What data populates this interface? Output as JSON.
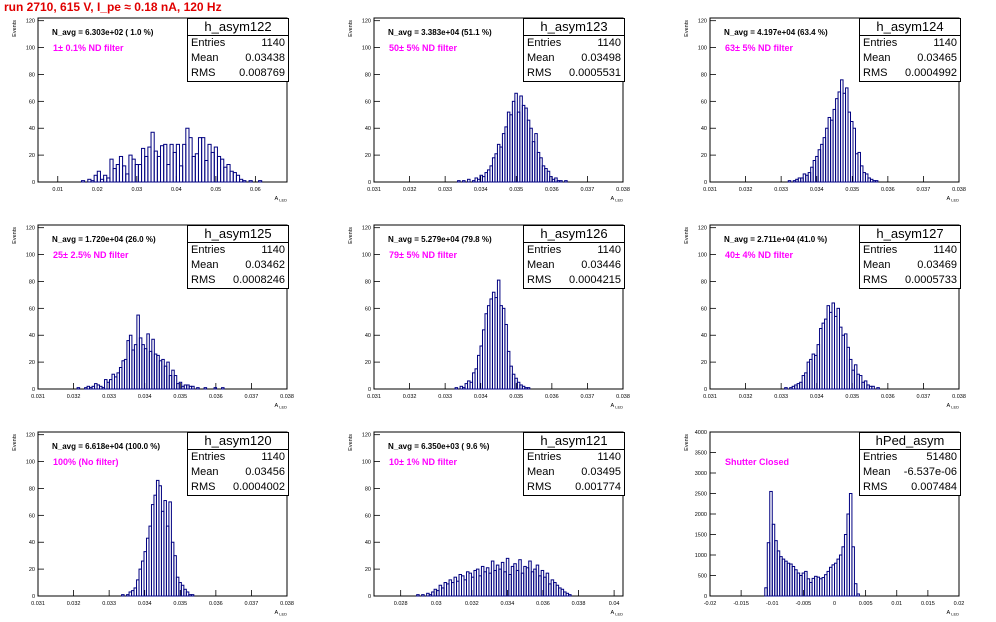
{
  "run_title": "run 2710,   615 V, I_pe ≈ 0.18 nA, 120 Hz",
  "colors": {
    "title": "#e00000",
    "annotation": "#ff00ff",
    "histogram": "#000080"
  },
  "chart_data": [
    {
      "type": "bar",
      "stat_name": "h_asym122",
      "entries": "1140",
      "mean": "0.03438",
      "rms": "0.008769",
      "n_avg": "N_avg = 6.303e+02 ( 1.0 %)",
      "filter": "1± 0.1% ND filter",
      "ylabel": "Events",
      "xlabel": "A",
      "xlabel_sub": "LED",
      "xlim": [
        0.005,
        0.068
      ],
      "ylim": [
        0,
        122
      ],
      "xticks": [
        0.01,
        0.02,
        0.03,
        0.04,
        0.05,
        0.06
      ],
      "xtick_labels": [
        "0.01",
        "0.02",
        "0.03",
        "0.04",
        "0.05",
        "0.06"
      ],
      "yticks": [
        0,
        20,
        40,
        60,
        80,
        100,
        120
      ],
      "ytick_labels": [
        "0",
        "20",
        "40",
        "60",
        "80",
        "100",
        "120"
      ],
      "bin_start": 0.016,
      "bin_width": 0.0008,
      "values": [
        1,
        0,
        2,
        1,
        5,
        8,
        2,
        5,
        3,
        17,
        10,
        13,
        19,
        12,
        6,
        20,
        17,
        13,
        13,
        25,
        19,
        26,
        37,
        23,
        19,
        27,
        28,
        13,
        28,
        22,
        28,
        12,
        28,
        40,
        33,
        19,
        21,
        33,
        33,
        16,
        28,
        22,
        26,
        19,
        17,
        11,
        13,
        8,
        7,
        5,
        2,
        1,
        0,
        1,
        0,
        0,
        1
      ]
    },
    {
      "type": "bar",
      "stat_name": "h_asym123",
      "entries": "1140",
      "mean": "0.03498",
      "rms": "0.0005531",
      "n_avg": "N_avg = 3.383e+04 (51.1 %)",
      "filter": "50± 5% ND filter",
      "ylabel": "Events",
      "xlabel": "A",
      "xlabel_sub": "LED",
      "xlim": [
        0.031,
        0.038
      ],
      "ylim": [
        0,
        122
      ],
      "xticks": [
        0.031,
        0.032,
        0.033,
        0.034,
        0.035,
        0.036,
        0.037,
        0.038
      ],
      "xtick_labels": [
        "0.031",
        "0.032",
        "0.033",
        "0.034",
        "0.035",
        "0.036",
        "0.037",
        "0.038"
      ],
      "yticks": [
        0,
        20,
        40,
        60,
        80,
        100,
        120
      ],
      "ytick_labels": [
        "0",
        "20",
        "40",
        "60",
        "80",
        "100",
        "120"
      ],
      "bin_start": 0.03335,
      "bin_width": 7e-05,
      "values": [
        1,
        0,
        1,
        0,
        2,
        0,
        1,
        3,
        2,
        5,
        4,
        7,
        9,
        12,
        18,
        21,
        28,
        26,
        36,
        41,
        52,
        50,
        60,
        66,
        52,
        64,
        57,
        55,
        46,
        40,
        30,
        36,
        22,
        18,
        12,
        10,
        8,
        4,
        2,
        3,
        1,
        1,
        0,
        1
      ]
    },
    {
      "type": "bar",
      "stat_name": "h_asym124",
      "entries": "1140",
      "mean": "0.03465",
      "rms": "0.0004992",
      "n_avg": "N_avg = 4.197e+04 (63.4 %)",
      "filter": "63± 5% ND filter",
      "ylabel": "Events",
      "xlabel": "A",
      "xlabel_sub": "LED",
      "xlim": [
        0.031,
        0.038
      ],
      "ylim": [
        0,
        122
      ],
      "xticks": [
        0.031,
        0.032,
        0.033,
        0.034,
        0.035,
        0.036,
        0.037,
        0.038
      ],
      "xtick_labels": [
        "0.031",
        "0.032",
        "0.033",
        "0.034",
        "0.035",
        "0.036",
        "0.037",
        "0.038"
      ],
      "yticks": [
        0,
        20,
        40,
        60,
        80,
        100,
        120
      ],
      "ytick_labels": [
        "0",
        "20",
        "40",
        "60",
        "80",
        "100",
        "120"
      ],
      "bin_start": 0.0332,
      "bin_width": 7e-05,
      "values": [
        1,
        0,
        1,
        2,
        3,
        3,
        6,
        5,
        7,
        11,
        16,
        19,
        24,
        28,
        33,
        40,
        48,
        46,
        54,
        62,
        67,
        76,
        66,
        70,
        52,
        45,
        40,
        21,
        22,
        12,
        7,
        6,
        3,
        2,
        1,
        1
      ]
    },
    {
      "type": "bar",
      "stat_name": "h_asym125",
      "entries": "1140",
      "mean": "0.03462",
      "rms": "0.0008246",
      "n_avg": "N_avg = 1.720e+04 (26.0 %)",
      "filter": "25± 2.5% ND filter",
      "ylabel": "Events",
      "xlabel": "A",
      "xlabel_sub": "LED",
      "xlim": [
        0.031,
        0.038
      ],
      "ylim": [
        0,
        122
      ],
      "xticks": [
        0.031,
        0.032,
        0.033,
        0.034,
        0.035,
        0.036,
        0.037,
        0.038
      ],
      "xtick_labels": [
        "0.031",
        "0.032",
        "0.033",
        "0.034",
        "0.035",
        "0.036",
        "0.037",
        "0.038"
      ],
      "yticks": [
        0,
        20,
        40,
        60,
        80,
        100,
        120
      ],
      "ytick_labels": [
        "0",
        "20",
        "40",
        "60",
        "80",
        "100",
        "120"
      ],
      "bin_start": 0.0321,
      "bin_width": 7e-05,
      "values": [
        1,
        0,
        0,
        1,
        2,
        1,
        2,
        4,
        3,
        2,
        1,
        7,
        5,
        7,
        11,
        9,
        12,
        16,
        21,
        22,
        36,
        40,
        29,
        33,
        55,
        38,
        33,
        30,
        41,
        28,
        37,
        26,
        25,
        21,
        22,
        17,
        20,
        10,
        14,
        10,
        4,
        5,
        2,
        3,
        3,
        2,
        2,
        0,
        1,
        0,
        0,
        1,
        0,
        0,
        0,
        1,
        0,
        0,
        1
      ]
    },
    {
      "type": "bar",
      "stat_name": "h_asym126",
      "entries": "1140",
      "mean": "0.03446",
      "rms": "0.0004215",
      "n_avg": "N_avg = 5.279e+04 (79.8 %)",
      "filter": "79± 5% ND filter",
      "ylabel": "Events",
      "xlabel": "A",
      "xlabel_sub": "LED",
      "xlim": [
        0.031,
        0.038
      ],
      "ylim": [
        0,
        122
      ],
      "xticks": [
        0.031,
        0.032,
        0.033,
        0.034,
        0.035,
        0.036,
        0.037,
        0.038
      ],
      "xtick_labels": [
        "0.031",
        "0.032",
        "0.033",
        "0.034",
        "0.035",
        "0.036",
        "0.037",
        "0.038"
      ],
      "yticks": [
        0,
        20,
        40,
        60,
        80,
        100,
        120
      ],
      "ytick_labels": [
        "0",
        "20",
        "40",
        "60",
        "80",
        "100",
        "120"
      ],
      "bin_start": 0.03328,
      "bin_width": 7e-05,
      "values": [
        1,
        0,
        2,
        1,
        4,
        6,
        5,
        12,
        15,
        25,
        32,
        44,
        56,
        62,
        67,
        72,
        68,
        81,
        62,
        60,
        48,
        28,
        17,
        11,
        8,
        5,
        3,
        2,
        1,
        1
      ]
    },
    {
      "type": "bar",
      "stat_name": "h_asym127",
      "entries": "1140",
      "mean": "0.03469",
      "rms": "0.0005733",
      "n_avg": "N_avg = 2.711e+04 (41.0 %)",
      "filter": "40± 4% ND filter",
      "ylabel": "Events",
      "xlabel": "A",
      "xlabel_sub": "LED",
      "xlim": [
        0.031,
        0.038
      ],
      "ylim": [
        0,
        122
      ],
      "xticks": [
        0.031,
        0.032,
        0.033,
        0.034,
        0.035,
        0.036,
        0.037,
        0.038
      ],
      "xtick_labels": [
        "0.031",
        "0.032",
        "0.033",
        "0.034",
        "0.035",
        "0.036",
        "0.037",
        "0.038"
      ],
      "yticks": [
        0,
        20,
        40,
        60,
        80,
        100,
        120
      ],
      "ytick_labels": [
        "0",
        "20",
        "40",
        "60",
        "80",
        "100",
        "120"
      ],
      "bin_start": 0.0331,
      "bin_width": 7e-05,
      "values": [
        1,
        0,
        1,
        2,
        3,
        4,
        5,
        10,
        12,
        20,
        22,
        26,
        25,
        33,
        45,
        49,
        52,
        62,
        57,
        64,
        54,
        60,
        46,
        40,
        41,
        31,
        22,
        14,
        18,
        11,
        10,
        5,
        6,
        3,
        2,
        2,
        0,
        1
      ]
    },
    {
      "type": "bar",
      "stat_name": "h_asym120",
      "entries": "1140",
      "mean": "0.03456",
      "rms": "0.0004002",
      "n_avg": "N_avg = 6.618e+04 (100.0 %)",
      "filter": "100% (No filter)",
      "ylabel": "Events",
      "xlabel": "A",
      "xlabel_sub": "LED",
      "xlim": [
        0.031,
        0.038
      ],
      "ylim": [
        0,
        122
      ],
      "xticks": [
        0.031,
        0.032,
        0.033,
        0.034,
        0.035,
        0.036,
        0.037,
        0.038
      ],
      "xtick_labels": [
        "0.031",
        "0.032",
        "0.033",
        "0.034",
        "0.035",
        "0.036",
        "0.037",
        "0.038"
      ],
      "yticks": [
        0,
        20,
        40,
        60,
        80,
        100,
        120
      ],
      "ytick_labels": [
        "0",
        "20",
        "40",
        "60",
        "80",
        "100",
        "120"
      ],
      "bin_start": 0.03335,
      "bin_width": 7e-05,
      "values": [
        1,
        0,
        1,
        3,
        4,
        6,
        12,
        20,
        26,
        33,
        43,
        52,
        68,
        75,
        86,
        82,
        63,
        71,
        52,
        70,
        40,
        30,
        14,
        10,
        8,
        5,
        3,
        1,
        1
      ]
    },
    {
      "type": "bar",
      "stat_name": "h_asym121",
      "entries": "1140",
      "mean": "0.03495",
      "rms": "0.001774",
      "n_avg": "N_avg = 6.350e+03 ( 9.6 %)",
      "filter": "10± 1% ND filter",
      "ylabel": "Events",
      "xlabel": "A",
      "xlabel_sub": "LED",
      "xlim": [
        0.0265,
        0.0405
      ],
      "ylim": [
        0,
        122
      ],
      "xticks": [
        0.028,
        0.03,
        0.032,
        0.034,
        0.036,
        0.038,
        0.04
      ],
      "xtick_labels": [
        "0.028",
        "0.03",
        "0.032",
        "0.034",
        "0.036",
        "0.038",
        "0.04"
      ],
      "yticks": [
        0,
        20,
        40,
        60,
        80,
        100,
        120
      ],
      "ytick_labels": [
        "0",
        "20",
        "40",
        "60",
        "80",
        "100",
        "120"
      ],
      "bin_start": 0.0289,
      "bin_width": 0.00014,
      "values": [
        1,
        0,
        1,
        0,
        2,
        1,
        3,
        5,
        4,
        8,
        6,
        10,
        9,
        12,
        10,
        14,
        11,
        16,
        15,
        12,
        18,
        17,
        14,
        19,
        20,
        15,
        22,
        18,
        21,
        17,
        26,
        19,
        23,
        20,
        25,
        18,
        28,
        16,
        22,
        24,
        19,
        27,
        17,
        22,
        21,
        26,
        18,
        20,
        23,
        15,
        19,
        14,
        17,
        9,
        12,
        10,
        8,
        6,
        5,
        3,
        2,
        1
      ]
    },
    {
      "type": "bar",
      "stat_name": "hPed_asym",
      "entries": "51480",
      "mean": "-6.537e-06",
      "rms": "0.007484",
      "n_avg": "",
      "filter": "Shutter Closed",
      "ylabel": "Events",
      "xlabel": "A",
      "xlabel_sub": "LED",
      "xlim": [
        -0.02,
        0.02
      ],
      "ylim": [
        0,
        4000
      ],
      "xticks": [
        -0.02,
        -0.015,
        -0.01,
        -0.005,
        0,
        0.005,
        0.01,
        0.015,
        0.02
      ],
      "xtick_labels": [
        "-0.02",
        "-0.015",
        "-0.01",
        "-0.005",
        "0",
        "0.005",
        "0.01",
        "0.015",
        "0.02"
      ],
      "yticks": [
        0,
        500,
        1000,
        1500,
        2000,
        2500,
        3000,
        3500,
        4000
      ],
      "ytick_labels": [
        "0",
        "500",
        "1000",
        "1500",
        "2000",
        "2500",
        "3000",
        "3500",
        "4000"
      ],
      "bin_start": -0.0112,
      "bin_width": 0.0004,
      "values": [
        200,
        1300,
        2550,
        1750,
        1350,
        1100,
        960,
        900,
        850,
        800,
        780,
        720,
        640,
        560,
        500,
        560,
        600,
        420,
        330,
        430,
        480,
        460,
        420,
        450,
        520,
        600,
        700,
        760,
        800,
        900,
        1000,
        1200,
        1500,
        2000,
        2500,
        1200,
        300,
        50
      ]
    }
  ]
}
